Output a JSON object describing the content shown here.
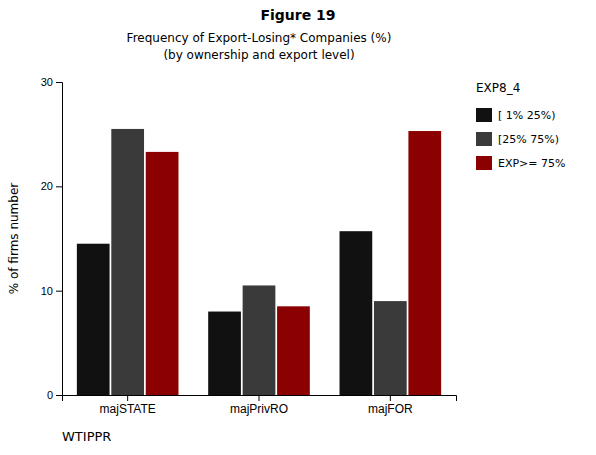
{
  "chart_data": {
    "type": "bar",
    "title": "Figure  19",
    "subtitle": [
      "Frequency of Export-Losing* Companies (%)",
      "(by ownership and export level)"
    ],
    "xlabel": "WTIPPR",
    "ylabel": "% of firms number",
    "categories": [
      "majSTATE",
      "majPrivRO",
      "majFOR"
    ],
    "series": [
      {
        "name": "[ 1% 25%)",
        "color": "#111111",
        "values": [
          14.5,
          8.0,
          15.7
        ]
      },
      {
        "name": "[25% 75%)",
        "color": "#3a3a3a",
        "values": [
          25.5,
          10.5,
          9.0
        ]
      },
      {
        "name": "EXP>=  75%",
        "color": "#8B0000",
        "values": [
          23.3,
          8.5,
          25.3
        ]
      }
    ],
    "legend_title": "EXP8_4",
    "legend": "right",
    "ylim": [
      0,
      30
    ],
    "yticks": [
      0,
      10,
      20,
      30
    ],
    "grid": false
  }
}
